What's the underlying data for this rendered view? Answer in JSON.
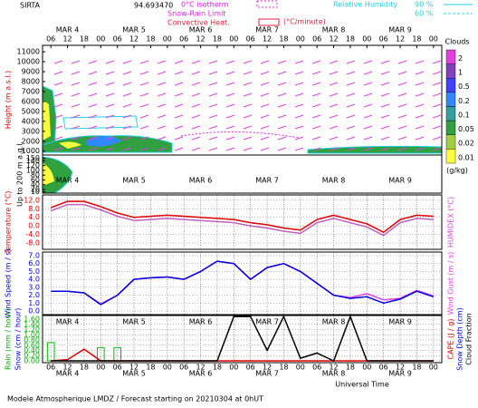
{
  "header": {
    "site": "SIRTA",
    "coord": "94.693470",
    "legend": [
      {
        "text": "0°C isotherm",
        "color": "#e020e0"
      },
      {
        "text": "Snow-Rain Limit",
        "color": "#e020e0"
      },
      {
        "text": "Convective Heat.",
        "color": "#e02040"
      },
      {
        "text": "(°C/minute)",
        "color": "#e02040"
      }
    ],
    "rh": {
      "title": "Relative Humidity",
      "levels": [
        "90 %",
        "60 %"
      ],
      "color": "#20d0e0"
    }
  },
  "time": {
    "xlim": [
      3,
      147
    ],
    "label": "Universal Time",
    "xticks": [
      {
        "value": 6,
        "label": "06"
      },
      {
        "value": 12,
        "label": "12"
      },
      {
        "value": 18,
        "label": "18"
      },
      {
        "value": 24,
        "label": "00"
      },
      {
        "value": 30,
        "label": "06"
      },
      {
        "value": 36,
        "label": "12"
      },
      {
        "value": 42,
        "label": "18"
      },
      {
        "value": 48,
        "label": "00"
      },
      {
        "value": 54,
        "label": "06"
      },
      {
        "value": 60,
        "label": "12"
      },
      {
        "value": 66,
        "label": "18"
      },
      {
        "value": 72,
        "label": "00"
      },
      {
        "value": 78,
        "label": "06"
      },
      {
        "value": 84,
        "label": "12"
      },
      {
        "value": 90,
        "label": "18"
      },
      {
        "value": 96,
        "label": "00"
      },
      {
        "value": 102,
        "label": "06"
      },
      {
        "value": 108,
        "label": "12"
      },
      {
        "value": 114,
        "label": "18"
      },
      {
        "value": 120,
        "label": "00"
      },
      {
        "value": 126,
        "label": "06"
      },
      {
        "value": 132,
        "label": "12"
      },
      {
        "value": 138,
        "label": "18"
      },
      {
        "value": 144,
        "label": "00"
      }
    ],
    "dates": [
      {
        "value": 12,
        "label": "MAR 4"
      },
      {
        "value": 36,
        "label": "MAR 5"
      },
      {
        "value": 60,
        "label": "MAR 6"
      },
      {
        "value": 84,
        "label": "MAR 7"
      },
      {
        "value": 108,
        "label": "MAR 8"
      },
      {
        "value": 132,
        "label": "MAR 9"
      }
    ]
  },
  "chart_data": [
    {
      "type": "contour",
      "ylabels": [
        {
          "text": "Height (m a.s.l.)",
          "color": "#e00000"
        },
        {
          "text": "Up to 200 m a.g.l.",
          "color": "#000000"
        }
      ],
      "ylim": [
        700,
        11650
      ],
      "yticks": [
        11000,
        10000,
        9000,
        8000,
        7000,
        6000,
        5000,
        4000,
        3000,
        2000,
        1000
      ],
      "y2lim": [
        5,
        160
      ],
      "y2ticks": [
        150,
        140,
        120,
        100,
        80,
        60,
        40,
        20,
        10
      ],
      "colorbar": {
        "title": "Clouds",
        "unit": "(g/kg)",
        "ticks": [
          2,
          1,
          0.5,
          0.2,
          0.1,
          0.05,
          0.02,
          0.01
        ],
        "colors": [
          "#e040e0",
          "#8040c0",
          "#4040ff",
          "#3088ff",
          "#30a0a0",
          "#30a040",
          "#a0d040",
          "#ffff40"
        ]
      }
    },
    {
      "type": "line",
      "ylabels": [
        {
          "text": "Temperature (°C)",
          "color": "#e00000"
        }
      ],
      "y2labels": [
        {
          "text": "HUMIDEX (°C)",
          "color": "#e040e0"
        }
      ],
      "x": [
        6,
        12,
        18,
        24,
        30,
        36,
        42,
        48,
        54,
        60,
        66,
        72,
        78,
        84,
        90,
        96,
        102,
        108,
        114,
        120,
        126,
        132,
        138,
        144
      ],
      "ylim": [
        -11,
        14.5
      ],
      "yticks": [
        {
          "value": 12,
          "label": "12.0"
        },
        {
          "value": 8,
          "label": "8.0"
        },
        {
          "value": 4,
          "label": "4.0"
        },
        {
          "value": 0,
          "label": "0.0"
        },
        {
          "value": -4,
          "label": "-4.0"
        },
        {
          "value": -8,
          "label": "-8.0"
        }
      ],
      "series": [
        {
          "color": "#e00000",
          "style": "line",
          "values": [
            8.5,
            11.5,
            11.5,
            9,
            6,
            4,
            4.5,
            5,
            4.5,
            4,
            3.5,
            3,
            1.5,
            0.5,
            -1,
            -2,
            3,
            5,
            3,
            1,
            -3,
            3,
            5,
            4.5
          ]
        },
        {
          "color": "#c060c0",
          "style": "line",
          "values": [
            7,
            10,
            10,
            7.5,
            4.5,
            2.5,
            3,
            3.5,
            3,
            2.5,
            2,
            1.5,
            0,
            -1,
            -2.5,
            -3.5,
            1.5,
            3.5,
            1.5,
            -0.5,
            -4.5,
            1.5,
            3.5,
            3
          ]
        }
      ]
    },
    {
      "type": "line",
      "ylabels": [
        {
          "text": "Wind Speed (m / s)",
          "color": "#0000e0"
        }
      ],
      "y2labels": [
        {
          "text": "Wind Gust (m / s)",
          "color": "#e040e0"
        }
      ],
      "x": [
        6,
        12,
        18,
        24,
        30,
        36,
        42,
        48,
        54,
        60,
        66,
        72,
        78,
        84,
        90,
        96,
        102,
        108,
        114,
        120,
        126,
        132,
        138,
        144
      ],
      "ylim": [
        -0.46,
        7.46
      ],
      "yticks": [
        {
          "value": 7,
          "label": "7.0"
        },
        {
          "value": 6,
          "label": "6.0"
        },
        {
          "value": 5,
          "label": "5.0"
        },
        {
          "value": 4,
          "label": "4.0"
        },
        {
          "value": 3,
          "label": "3.0"
        },
        {
          "value": 2,
          "label": "2.0"
        },
        {
          "value": 1,
          "label": "1.0"
        },
        {
          "value": 0,
          "label": "0.0"
        }
      ],
      "series": [
        {
          "color": "#e040e0",
          "style": "line",
          "values": [
            2.5,
            2.5,
            2.3,
            0.9,
            2.0,
            4.0,
            4.2,
            4.3,
            4.0,
            5.0,
            6.3,
            6.0,
            4.0,
            5.5,
            6.0,
            5.0,
            3.5,
            2.0,
            1.7,
            2.2,
            1.4,
            1.6,
            2.6,
            1.9
          ]
        },
        {
          "color": "#0000e0",
          "style": "line",
          "values": [
            2.5,
            2.5,
            2.3,
            0.8,
            2.0,
            4.0,
            4.2,
            4.3,
            4.0,
            5.0,
            6.3,
            6.0,
            4.0,
            5.5,
            6.0,
            5.0,
            3.5,
            2.0,
            1.6,
            1.8,
            1.0,
            1.5,
            2.5,
            1.8
          ]
        }
      ]
    },
    {
      "type": "line",
      "ylabels": [
        {
          "text": "Rain (mm / hour)",
          "color": "#00b000"
        },
        {
          "text": "Snow (cm / hour)",
          "color": "#0000e0"
        }
      ],
      "y2labels": [
        {
          "text": "CAPE (J / g)",
          "color": "#e00000"
        },
        {
          "text": "Snow Depth (cm)",
          "color": "#0000e0"
        },
        {
          "text": "Cloud Fraction",
          "color": "#000000"
        }
      ],
      "x": [
        6,
        12,
        18,
        24,
        30,
        36,
        42,
        48,
        54,
        60,
        66,
        72,
        78,
        84,
        90,
        96,
        102,
        108,
        114,
        120,
        126,
        132,
        138,
        144
      ],
      "ylim": [
        -0.07,
        1.74
      ],
      "yticks": [
        {
          "value": 1.6,
          "label": "1.60"
        },
        {
          "value": 1.4,
          "label": "1.40"
        },
        {
          "value": 1.2,
          "label": "1.20"
        },
        {
          "value": 1,
          "label": "1.00"
        },
        {
          "value": 0.8,
          "label": "0.80"
        },
        {
          "value": 0.6,
          "label": "0.60"
        },
        {
          "value": 0.4,
          "label": "0.40"
        },
        {
          "value": 0.2,
          "label": "0.20"
        },
        {
          "value": 0,
          "label": "0.00"
        }
      ],
      "series": [
        {
          "color": "#00c000",
          "style": "bar",
          "values": [
            0.7,
            0,
            0,
            0.5,
            0.5,
            0,
            0,
            0,
            0,
            0,
            0,
            0,
            0,
            0,
            0,
            0,
            0,
            0,
            0,
            0,
            0,
            0,
            0,
            0
          ]
        },
        {
          "color": "#e00000",
          "style": "line",
          "values": [
            0,
            0.05,
            0.45,
            0,
            0,
            0,
            0,
            0,
            0,
            0,
            0,
            0,
            0,
            0,
            0,
            0,
            0,
            0,
            0,
            0,
            0,
            0,
            0,
            0
          ]
        },
        {
          "color": "#000000",
          "style": "line",
          "values": [
            0,
            0,
            0,
            0,
            0,
            0,
            0,
            0,
            0,
            0,
            0,
            1.7,
            1.7,
            0.4,
            1.7,
            0.1,
            0.3,
            0,
            1.7,
            0,
            0,
            0,
            0,
            0
          ]
        }
      ]
    }
  ],
  "footer": "Modele Atmospherique LMDZ / Forecast starting on 20210304 at 0hUT"
}
